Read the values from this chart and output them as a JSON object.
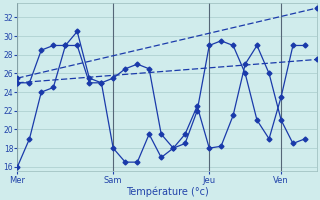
{
  "title": "Température (°c)",
  "bg_color": "#d0ecec",
  "line_color": "#1a3aaa",
  "grid_color": "#a8cccc",
  "text_color": "#2244aa",
  "ylim": [
    15.5,
    33.5
  ],
  "yticks": [
    16,
    18,
    20,
    22,
    24,
    26,
    28,
    30,
    32
  ],
  "xlim": [
    0,
    10.4
  ],
  "day_labels": [
    "Mer",
    "Sam",
    "Jeu",
    "Ven"
  ],
  "day_positions": [
    0.0,
    3.33,
    6.67,
    9.17
  ],
  "line1_x": [
    0,
    0.42,
    0.83,
    1.25,
    1.67,
    2.08,
    2.5,
    2.92,
    3.33,
    3.75,
    4.17,
    4.58,
    5.0,
    5.42,
    5.83,
    6.25,
    6.67,
    7.08,
    7.5,
    7.92,
    8.33,
    8.75,
    9.17,
    9.58,
    10.0
  ],
  "line1_y": [
    16,
    19,
    24,
    24.5,
    29,
    29,
    25,
    25,
    18,
    16.5,
    16.5,
    19.5,
    17,
    18,
    19.5,
    22.5,
    18,
    18.2,
    21.5,
    27,
    29,
    26,
    21,
    18.5,
    19
  ],
  "line2_x": [
    0,
    0.42,
    0.83,
    1.25,
    1.67,
    2.08,
    2.5,
    2.92,
    3.33,
    3.75,
    4.17,
    4.58,
    5.0,
    5.42,
    5.83,
    6.25,
    6.67,
    7.08,
    7.5,
    7.92,
    8.33,
    8.75,
    9.17,
    9.58,
    10.0
  ],
  "line2_y": [
    25,
    25,
    28.5,
    29,
    29,
    30.5,
    25.5,
    25,
    25.5,
    26.5,
    27,
    26.5,
    19.5,
    18,
    18.5,
    22,
    29,
    29.5,
    29,
    26,
    21,
    19,
    23.5,
    29,
    29
  ],
  "line3_x": [
    0,
    10.4
  ],
  "line3_y": [
    25,
    27.5
  ],
  "line4_x": [
    0,
    10.4
  ],
  "line4_y": [
    25.5,
    33
  ]
}
